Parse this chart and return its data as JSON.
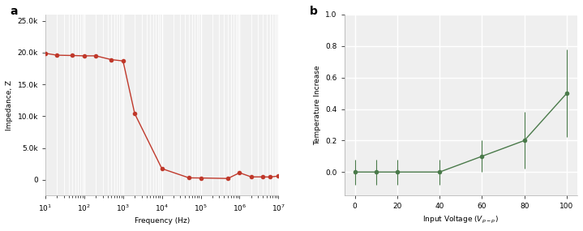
{
  "plot_a": {
    "freq": [
      10,
      20,
      50,
      100,
      200,
      500,
      1000,
      2000,
      10000,
      50000,
      100000,
      500000,
      1000000,
      2000000,
      4000000,
      6000000,
      10000000
    ],
    "impedance": [
      19900,
      19600,
      19550,
      19500,
      19500,
      18900,
      18700,
      10400,
      1750,
      300,
      280,
      200,
      1100,
      450,
      450,
      430,
      580
    ],
    "color": "#c0392b",
    "marker": "o",
    "markersize": 3,
    "linewidth": 1.0,
    "ylabel": "Impedance, Z",
    "xlabel": "Frequency (Hz)",
    "ylim": [
      -2500,
      26000
    ],
    "yticks": [
      0,
      5000,
      10000,
      15000,
      20000,
      25000
    ],
    "yticklabels": [
      "0",
      "5.0k",
      "10.0k",
      "15.0k",
      "20.0k",
      "25.0k"
    ],
    "label": "a"
  },
  "plot_b": {
    "voltage": [
      0,
      10,
      20,
      40,
      60,
      80,
      100
    ],
    "temp": [
      0.0,
      0.0,
      0.0,
      0.0,
      0.1,
      0.2,
      0.5
    ],
    "yerr": [
      0.08,
      0.08,
      0.08,
      0.08,
      0.1,
      0.18,
      0.28
    ],
    "color": "#4a7a4a",
    "marker": "o",
    "markersize": 3,
    "linewidth": 1.0,
    "ylabel": "Temperature Increase",
    "xlabel": "Input Voltage ($V_{p-p}$)",
    "ylim": [
      -0.15,
      1.0
    ],
    "yticks": [
      0.0,
      0.2,
      0.4,
      0.6,
      0.8,
      1.0
    ],
    "xticks": [
      0,
      20,
      40,
      60,
      80,
      100
    ],
    "label": "b"
  },
  "bg_color": "#efefef",
  "panel_bg": "#ffffff",
  "fontsize": 6.5,
  "label_fontsize": 10
}
